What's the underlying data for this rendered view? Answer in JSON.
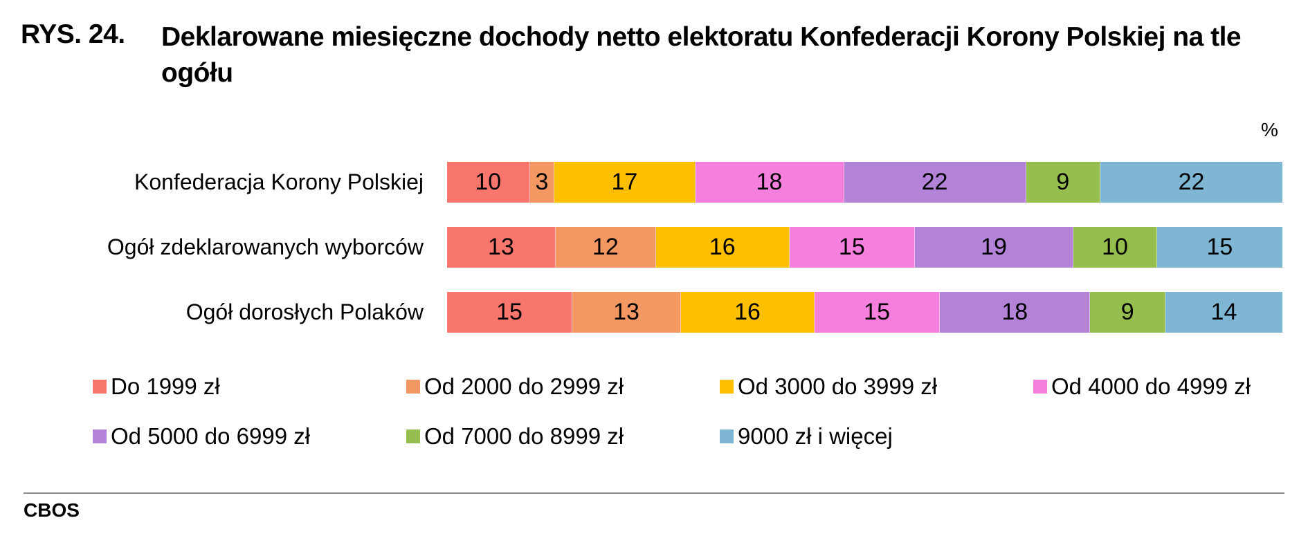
{
  "header": {
    "prefix": "RYS. 24.",
    "title": "Deklarowane miesięczne dochody netto elektoratu Konfederacji Korony Polskiej na tle ogółu"
  },
  "unit_label": "%",
  "source": "CBOS",
  "chart_data": {
    "type": "bar",
    "orientation": "horizontal",
    "stacked": true,
    "title": "Deklarowane miesięczne dochody netto elektoratu Konfederacji Korony Polskiej na tle ogółu",
    "xlabel": "",
    "ylabel": "",
    "unit": "%",
    "xlim": [
      0,
      100
    ],
    "grid": false,
    "legend_position": "bottom",
    "categories": [
      "Konfederacja Korony Polskiej",
      "Ogół zdeklarowanych wyborców",
      "Ogół dorosłych Polaków"
    ],
    "series": [
      {
        "name": "Do 1999 zł",
        "color": "#F8766D",
        "values": [
          10,
          13,
          15
        ]
      },
      {
        "name": "Od 2000 do 2999 zł",
        "color": "#F39862",
        "values": [
          3,
          12,
          13
        ]
      },
      {
        "name": "Od 3000 do 3999 zł",
        "color": "#FDBF00",
        "values": [
          17,
          16,
          16
        ]
      },
      {
        "name": "Od 4000 do 4999 zł",
        "color": "#F57FDD",
        "values": [
          18,
          15,
          15
        ]
      },
      {
        "name": "Od 5000 do 6999 zł",
        "color": "#B383D8",
        "values": [
          22,
          19,
          18
        ]
      },
      {
        "name": "Od 7000 do 8999 zł",
        "color": "#96BE4F",
        "values": [
          9,
          10,
          9
        ]
      },
      {
        "name": "9000 zł i więcej",
        "color": "#7EB6D4",
        "values": [
          22,
          15,
          14
        ]
      }
    ]
  },
  "rows": [
    {
      "label": "Konfederacja Korony Polskiej",
      "values": [
        "10",
        "3",
        "17",
        "18",
        "22",
        "9",
        "22"
      ]
    },
    {
      "label": "Ogół zdeklarowanych wyborców",
      "values": [
        "13",
        "12",
        "16",
        "15",
        "19",
        "10",
        "15"
      ]
    },
    {
      "label": "Ogół dorosłych Polaków",
      "values": [
        "15",
        "13",
        "16",
        "15",
        "18",
        "9",
        "14"
      ]
    }
  ],
  "legend": [
    {
      "label": "Do 1999 zł",
      "color": "#F8766D"
    },
    {
      "label": "Od 2000 do 2999 zł",
      "color": "#F39862"
    },
    {
      "label": "Od 3000 do 3999 zł",
      "color": "#FDBF00"
    },
    {
      "label": "Od 4000 do 4999 zł",
      "color": "#F57FDD"
    },
    {
      "label": "Od 5000 do 6999 zł",
      "color": "#B383D8"
    },
    {
      "label": "Od 7000 do 8999 zł",
      "color": "#96BE4F"
    },
    {
      "label": "9000 zł i więcej",
      "color": "#7EB6D4"
    }
  ]
}
